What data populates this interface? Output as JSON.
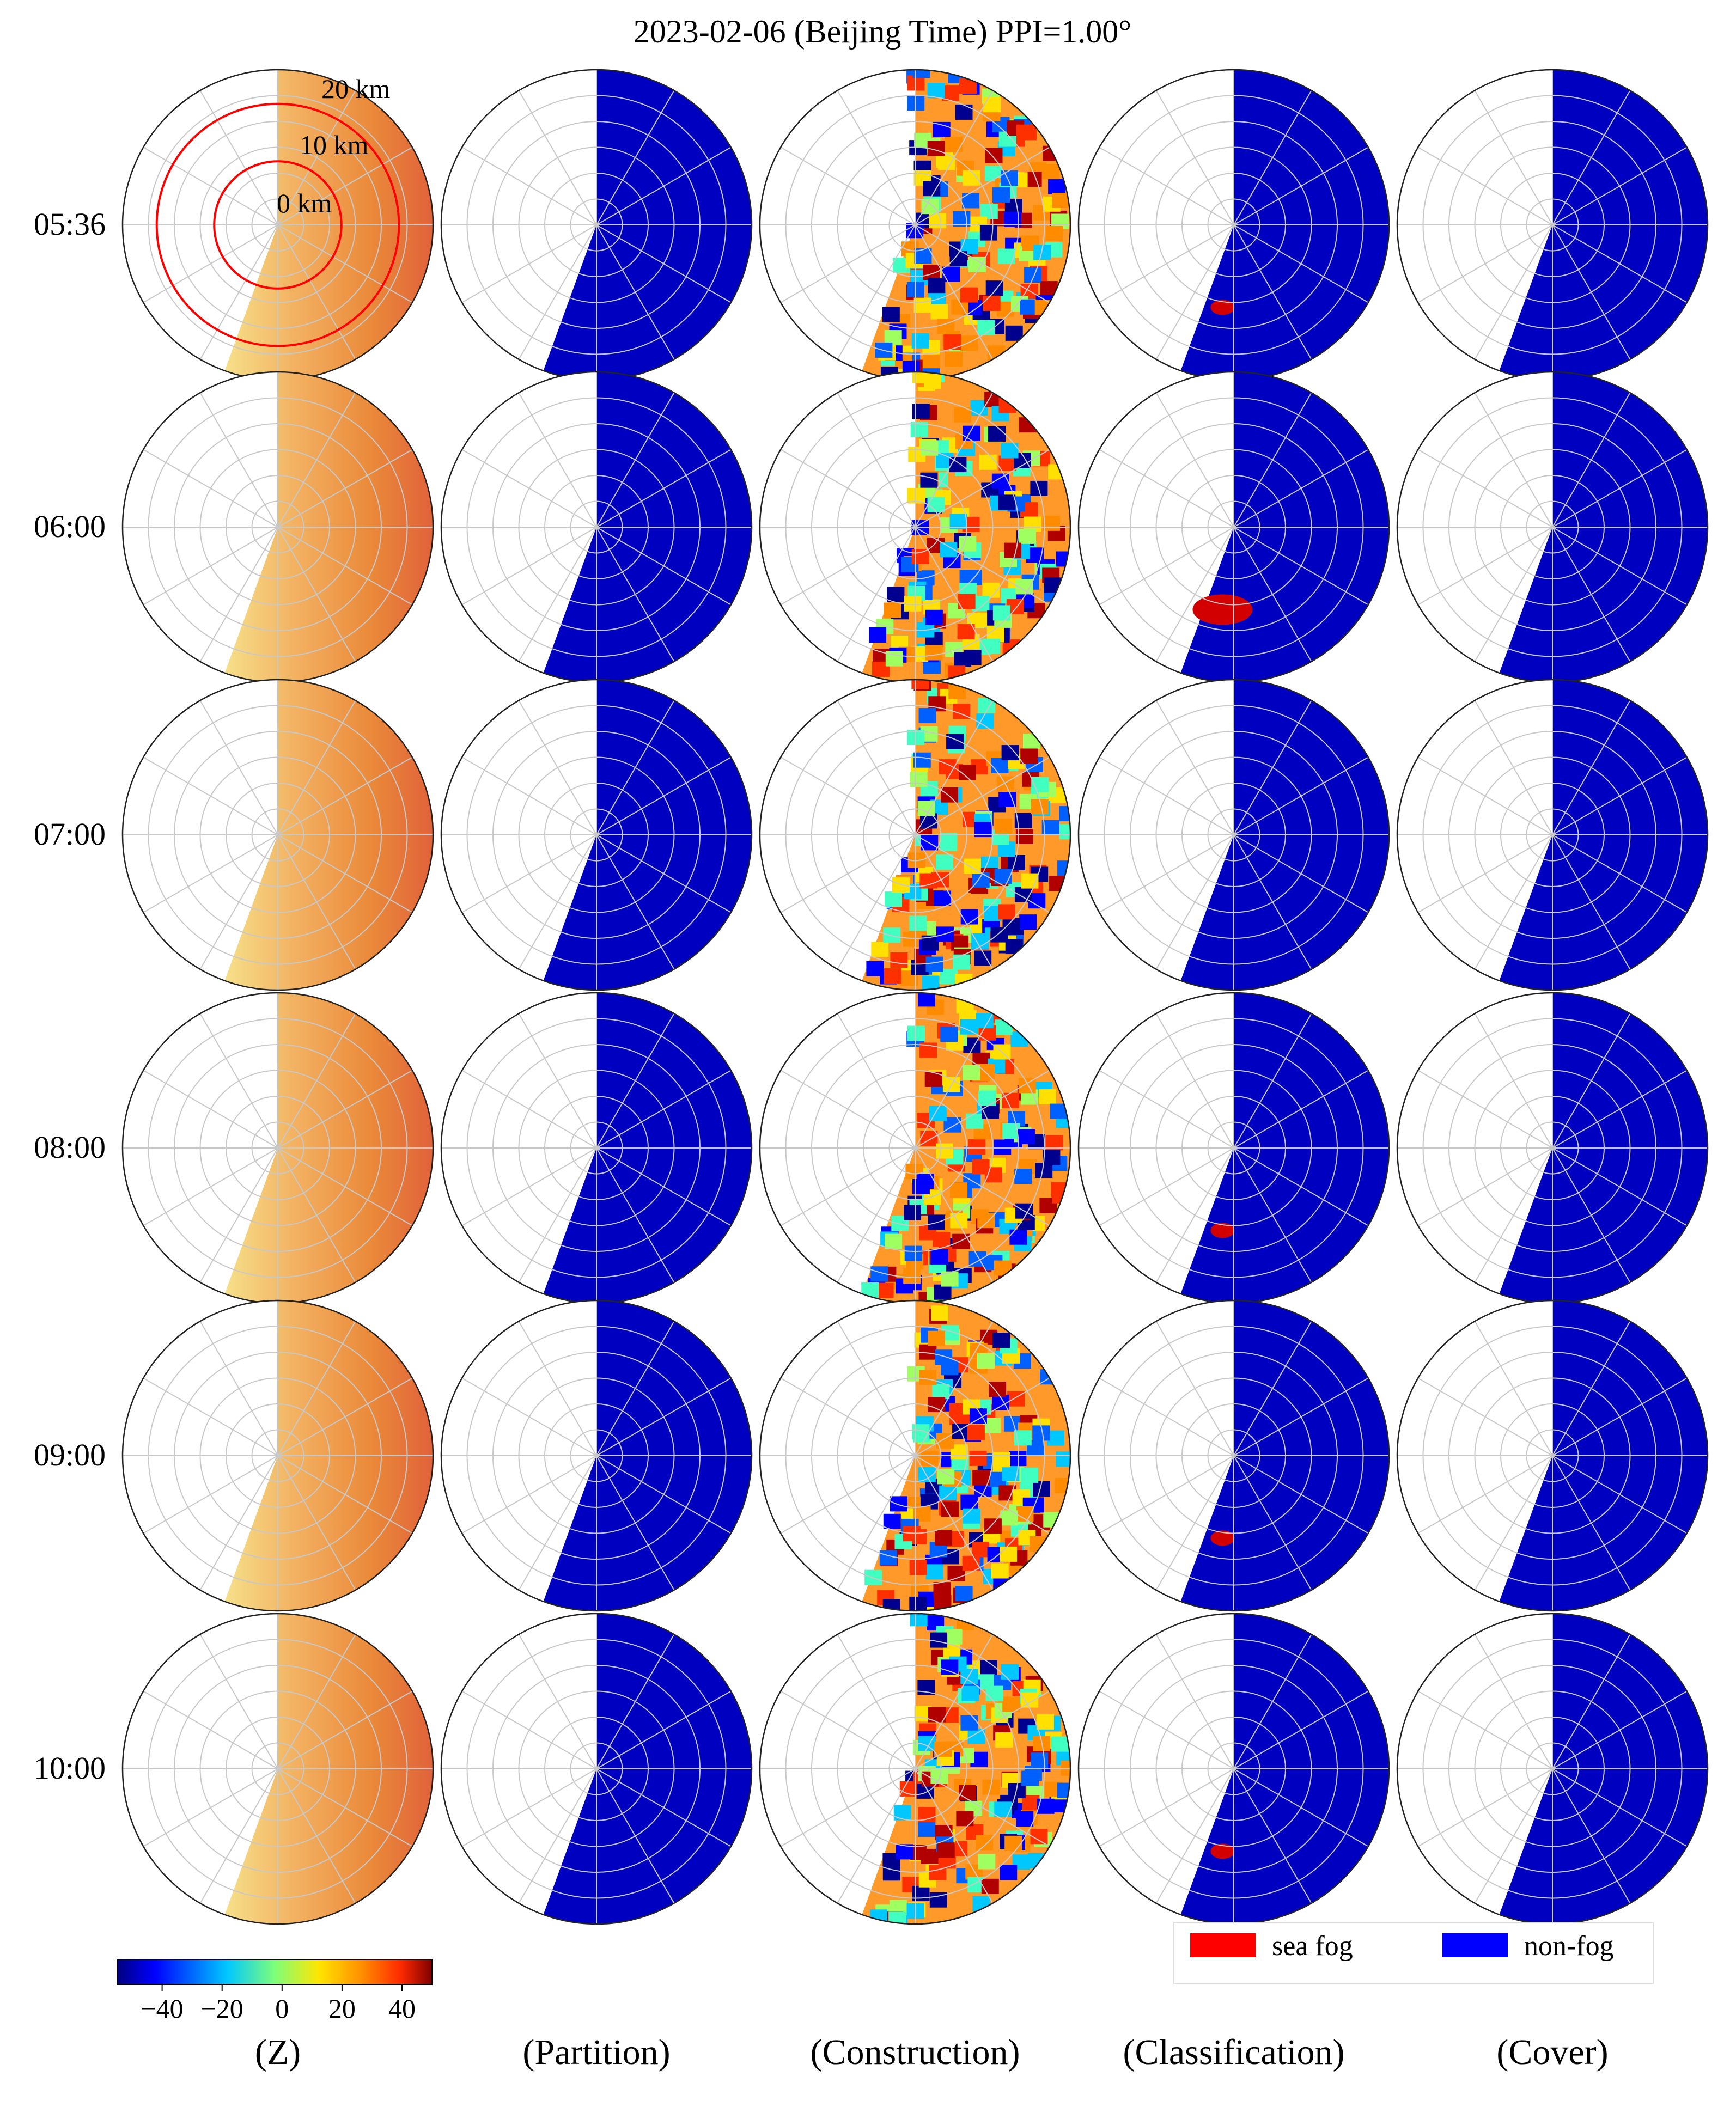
{
  "title": "2023-02-06 (Beijing Time) PPI=1.00°",
  "times": [
    "05:36",
    "06:00",
    "07:00",
    "08:00",
    "09:00",
    "10:00"
  ],
  "columns": [
    "(Z)",
    "(Partition)",
    "(Construction)",
    "(Classification)",
    "(Cover)"
  ],
  "range_labels": [
    "20 km",
    "10 km",
    "0 km"
  ],
  "colorbar": {
    "ticks": [
      "−40",
      "−20",
      "0",
      "20",
      "40"
    ],
    "tick_values": [
      -40,
      -20,
      0,
      20,
      40
    ],
    "range": [
      -55,
      50
    ],
    "colormap": "jet"
  },
  "legend": {
    "items": [
      {
        "label": "sea fog",
        "color": "#ff0000"
      },
      {
        "label": "non-fog",
        "color": "#0000ff"
      }
    ]
  },
  "colors": {
    "non_fog_fill": "#0000c0",
    "sea_fog_fill": "#d20000",
    "range_ring_highlight": "#ff0000",
    "grid": "#c8c8c8"
  }
}
